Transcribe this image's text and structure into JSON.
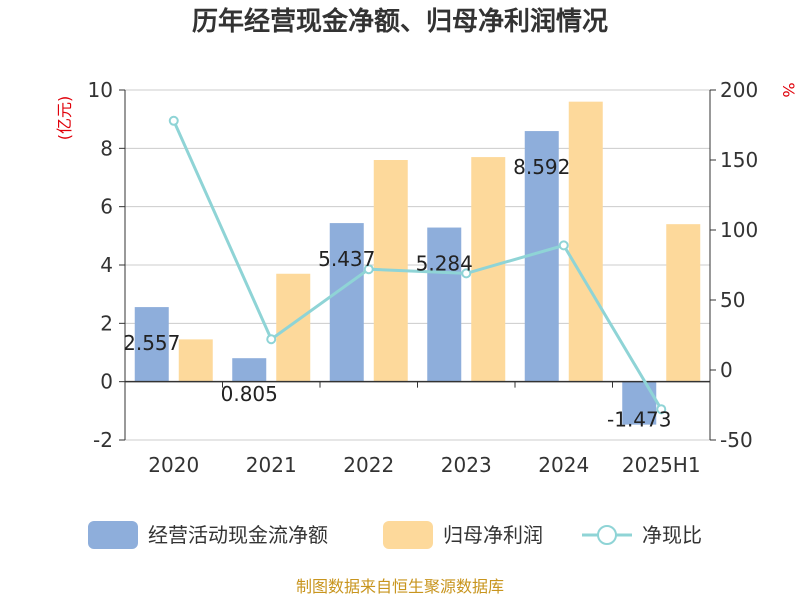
{
  "chart_data": {
    "type": "bar",
    "title": "历年经营现金净额、归母净利润情况",
    "categories": [
      "2020",
      "2021",
      "2022",
      "2023",
      "2024",
      "2025H1"
    ],
    "series": [
      {
        "name": "经营活动现金流净额",
        "type": "bar",
        "axis": "left",
        "color": "#8EAEDB",
        "values": [
          2.557,
          0.805,
          5.437,
          5.284,
          8.592,
          -1.473
        ],
        "labels": [
          "2.557",
          "0.805",
          "5.437",
          "5.284",
          "8.592",
          "-1.473"
        ]
      },
      {
        "name": "归母净利润",
        "type": "bar",
        "axis": "left",
        "color": "#FDD99B",
        "values": [
          1.45,
          3.7,
          7.6,
          7.7,
          9.6,
          5.4
        ]
      },
      {
        "name": "净现比",
        "type": "line",
        "axis": "right",
        "color": "#8FD4D6",
        "values": [
          178,
          22,
          72,
          69,
          89,
          -28
        ]
      }
    ],
    "y_left": {
      "label": "(亿元)",
      "min": -2,
      "max": 10,
      "ticks": [
        -2,
        0,
        2,
        4,
        6,
        8,
        10
      ],
      "tick_labels": [
        "-2",
        "0",
        "2",
        "4",
        "6",
        "8",
        "10"
      ]
    },
    "y_right": {
      "label": "%",
      "min": -50,
      "max": 200,
      "ticks": [
        -50,
        0,
        50,
        100,
        150,
        200
      ],
      "tick_labels": [
        "-50",
        "0",
        "50",
        "100",
        "150",
        "200"
      ]
    },
    "grid": true,
    "legend_position": "bottom",
    "source": "制图数据来自恒生聚源数据库",
    "label_color": "#E0000A",
    "source_color": "#C8951E"
  }
}
